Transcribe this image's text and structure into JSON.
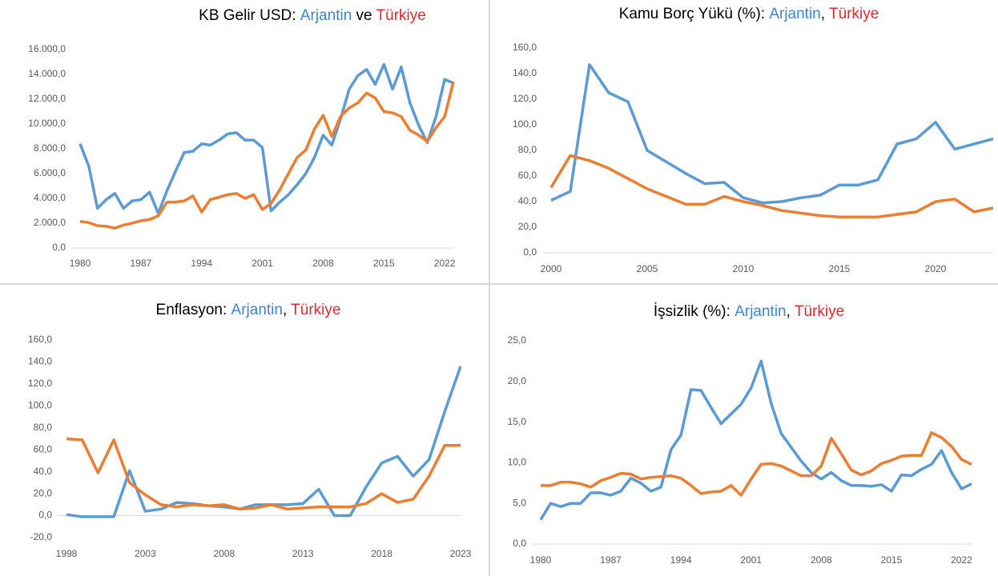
{
  "chart_data": [
    {
      "type": "line",
      "title": "KB Gelir USD:",
      "title_separator": " ve ",
      "x": [
        1980,
        1981,
        1982,
        1983,
        1984,
        1985,
        1986,
        1987,
        1988,
        1989,
        1990,
        1991,
        1992,
        1993,
        1994,
        1995,
        1996,
        1997,
        1998,
        1999,
        2000,
        2001,
        2002,
        2003,
        2004,
        2005,
        2006,
        2007,
        2008,
        2009,
        2010,
        2011,
        2012,
        2013,
        2014,
        2015,
        2016,
        2017,
        2018,
        2019,
        2020,
        2021,
        2022,
        2023
      ],
      "series": [
        {
          "name": "Arjantin",
          "color": "#5b9bd5",
          "name_color": "#3d85d1",
          "values": [
            8400,
            6600,
            3200,
            3900,
            4400,
            3200,
            3800,
            3900,
            4500,
            2800,
            4600,
            6200,
            7700,
            7800,
            8400,
            8300,
            8700,
            9200,
            9300,
            8700,
            8700,
            8100,
            3000,
            3700,
            4300,
            5100,
            6000,
            7300,
            9100,
            8300,
            10400,
            12800,
            13900,
            14400,
            13200,
            14800,
            12800,
            14600,
            11700,
            9900,
            8500,
            10600,
            13600,
            13300
          ]
        },
        {
          "name": "Türkiye",
          "color": "#ed7d31",
          "name_color": "#e8262b",
          "values": [
            2150,
            2050,
            1800,
            1750,
            1600,
            1850,
            2000,
            2200,
            2300,
            2600,
            3700,
            3700,
            3800,
            4200,
            2900,
            3900,
            4100,
            4300,
            4400,
            4000,
            4300,
            3100,
            3600,
            4700,
            6000,
            7300,
            7900,
            9600,
            10700,
            9000,
            10600,
            11300,
            11700,
            12500,
            12100,
            11000,
            10900,
            10600,
            9500,
            9100,
            8600,
            9700,
            10600,
            13400
          ]
        }
      ],
      "xlim": [
        1980,
        2023
      ],
      "xticks": [
        1980,
        1987,
        1994,
        2001,
        2008,
        2015,
        2022
      ],
      "ylim": [
        0,
        16000
      ],
      "yticks": [
        {
          "value": 0,
          "label": "0,0"
        },
        {
          "value": 2000,
          "label": "2.000,0"
        },
        {
          "value": 4000,
          "label": "4.000,0"
        },
        {
          "value": 6000,
          "label": "6.000,0"
        },
        {
          "value": 8000,
          "label": "8.000,0"
        },
        {
          "value": 10000,
          "label": "10.000,0"
        },
        {
          "value": 12000,
          "label": "12.000,0"
        },
        {
          "value": 14000,
          "label": "14.000,0"
        },
        {
          "value": 16000,
          "label": "16.000,0"
        }
      ]
    },
    {
      "type": "line",
      "title": "Kamu Borç Yükü (%):",
      "title_separator": ", ",
      "x": [
        2000,
        2001,
        2002,
        2003,
        2004,
        2005,
        2006,
        2007,
        2008,
        2009,
        2010,
        2011,
        2012,
        2013,
        2014,
        2015,
        2016,
        2017,
        2018,
        2019,
        2020,
        2021,
        2022,
        2023
      ],
      "series": [
        {
          "name": "Arjantin",
          "color": "#5b9bd5",
          "name_color": "#3d85d1",
          "values": [
            41,
            48,
            147,
            125,
            118,
            80,
            71,
            62,
            54,
            55,
            43,
            39,
            40,
            43,
            45,
            53,
            53,
            57,
            85,
            89,
            102,
            81,
            85,
            89
          ]
        },
        {
          "name": "Türkiye",
          "color": "#ed7d31",
          "name_color": "#e8262b",
          "values": [
            51,
            76,
            72,
            66,
            58,
            50,
            44,
            38,
            38,
            44,
            40,
            37,
            33,
            31,
            29,
            28,
            28,
            28,
            30,
            32,
            40,
            42,
            32,
            35
          ]
        }
      ],
      "xlim": [
        2000,
        2023
      ],
      "xticks": [
        2000,
        2005,
        2010,
        2015,
        2020
      ],
      "ylim": [
        0,
        160
      ],
      "yticks": [
        {
          "value": 0,
          "label": "0,0"
        },
        {
          "value": 20,
          "label": "20,0"
        },
        {
          "value": 40,
          "label": "40,0"
        },
        {
          "value": 60,
          "label": "60,0"
        },
        {
          "value": 80,
          "label": "80,0"
        },
        {
          "value": 100,
          "label": "100,0"
        },
        {
          "value": 120,
          "label": "120,0"
        },
        {
          "value": 140,
          "label": "140,0"
        },
        {
          "value": 160,
          "label": "160,0"
        }
      ]
    },
    {
      "type": "line",
      "title": "Enflasyon:",
      "title_separator": ", ",
      "x": [
        1998,
        1999,
        2000,
        2001,
        2002,
        2003,
        2004,
        2005,
        2006,
        2007,
        2008,
        2009,
        2010,
        2011,
        2012,
        2013,
        2014,
        2015,
        2016,
        2017,
        2018,
        2019,
        2020,
        2021,
        2022,
        2023
      ],
      "series": [
        {
          "name": "Arjantin",
          "color": "#5b9bd5",
          "name_color": "#3d85d1",
          "values": [
            1,
            -1,
            -1,
            -1,
            41,
            4,
            6,
            12,
            11,
            9,
            8,
            6,
            10,
            10,
            10,
            11,
            24,
            0,
            0,
            26,
            48,
            54,
            36,
            51,
            95,
            136
          ]
        },
        {
          "name": "Türkiye",
          "color": "#ed7d31",
          "name_color": "#e8262b",
          "values": [
            70,
            69,
            39,
            69,
            30,
            19,
            10,
            8,
            10,
            9,
            10,
            6,
            7,
            10,
            6,
            7,
            8,
            8,
            8,
            11,
            20,
            12,
            15,
            36,
            64,
            64
          ]
        }
      ],
      "xlim": [
        1998,
        2023
      ],
      "xticks": [
        1998,
        2003,
        2008,
        2013,
        2018,
        2023
      ],
      "ylim": [
        -20,
        160
      ],
      "yticks": [
        {
          "value": -20,
          "label": "-20,0"
        },
        {
          "value": 0,
          "label": "0,0"
        },
        {
          "value": 20,
          "label": "20,0"
        },
        {
          "value": 40,
          "label": "40,0"
        },
        {
          "value": 60,
          "label": "60,0"
        },
        {
          "value": 80,
          "label": "80,0"
        },
        {
          "value": 100,
          "label": "100,0"
        },
        {
          "value": 120,
          "label": "120,0"
        },
        {
          "value": 140,
          "label": "140,0"
        },
        {
          "value": 160,
          "label": "160,0"
        }
      ]
    },
    {
      "type": "line",
      "title": "İşsizlik (%):",
      "title_separator": ", ",
      "x": [
        1980,
        1981,
        1982,
        1983,
        1984,
        1985,
        1986,
        1987,
        1988,
        1989,
        1990,
        1991,
        1992,
        1993,
        1994,
        1995,
        1996,
        1997,
        1998,
        1999,
        2000,
        2001,
        2002,
        2003,
        2004,
        2005,
        2006,
        2007,
        2008,
        2009,
        2010,
        2011,
        2012,
        2013,
        2014,
        2015,
        2016,
        2017,
        2018,
        2019,
        2020,
        2021,
        2022,
        2023
      ],
      "series": [
        {
          "name": "Arjantin",
          "color": "#5b9bd5",
          "name_color": "#3d85d1",
          "values": [
            3.0,
            5.0,
            4.6,
            5.0,
            5.0,
            6.3,
            6.3,
            6.0,
            6.5,
            8.1,
            7.5,
            6.5,
            7.0,
            11.6,
            13.4,
            19.0,
            18.9,
            16.8,
            14.8,
            16.0,
            17.2,
            19.2,
            22.5,
            17.3,
            13.6,
            11.9,
            10.2,
            8.8,
            8.0,
            8.8,
            7.8,
            7.2,
            7.2,
            7.1,
            7.3,
            6.5,
            8.5,
            8.4,
            9.2,
            9.8,
            11.5,
            8.8,
            6.8,
            7.4
          ]
        },
        {
          "name": "Türkiye",
          "color": "#ed7d31",
          "name_color": "#e8262b",
          "values": [
            7.2,
            7.2,
            7.6,
            7.6,
            7.4,
            7.0,
            7.8,
            8.2,
            8.7,
            8.6,
            8.0,
            8.2,
            8.3,
            8.4,
            8.1,
            7.2,
            6.2,
            6.4,
            6.5,
            7.2,
            6.0,
            8.0,
            9.8,
            9.9,
            9.6,
            9.0,
            8.4,
            8.4,
            9.6,
            13.0,
            11.1,
            9.1,
            8.5,
            9.0,
            9.9,
            10.3,
            10.8,
            10.9,
            10.9,
            13.7,
            13.1,
            12.0,
            10.4,
            9.8
          ]
        }
      ],
      "xlim": [
        1980,
        2023
      ],
      "xticks": [
        1980,
        1987,
        1994,
        2001,
        2008,
        2015,
        2022
      ],
      "ylim": [
        0,
        25
      ],
      "yticks": [
        {
          "value": 0,
          "label": "0,0"
        },
        {
          "value": 5,
          "label": "5,0"
        },
        {
          "value": 10,
          "label": "10,0"
        },
        {
          "value": 15,
          "label": "15,0"
        },
        {
          "value": 20,
          "label": "20,0"
        },
        {
          "value": 25,
          "label": "25,0"
        }
      ]
    }
  ]
}
